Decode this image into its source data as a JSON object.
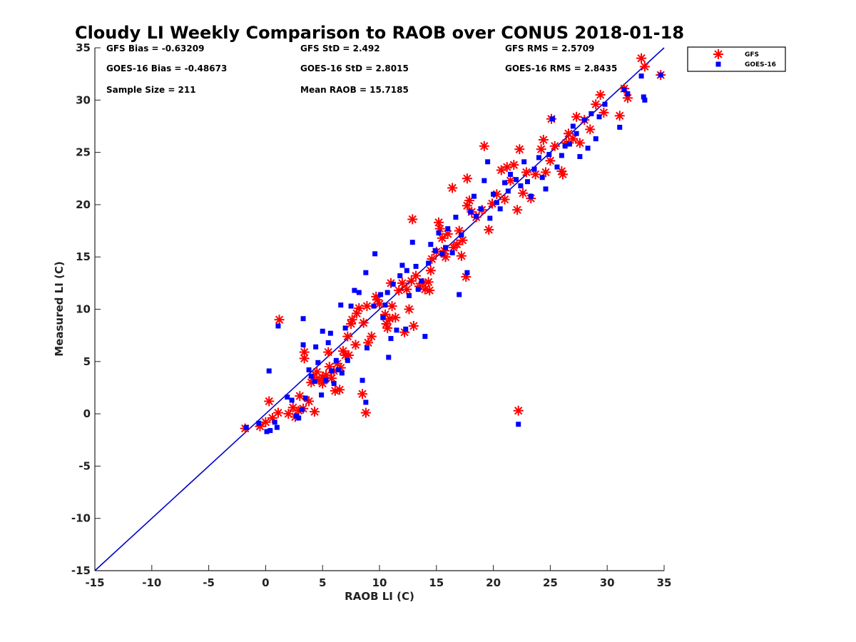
{
  "chart_data": {
    "type": "scatter",
    "title": "Cloudy LI Weekly Comparison to RAOB over CONUS 2018-01-18",
    "xlabel": "RAOB LI (C)",
    "ylabel": "Measured LI (C)",
    "xlim": [
      -15,
      35
    ],
    "ylim": [
      -15,
      35
    ],
    "xticks": [
      "-15",
      "-10",
      "-5",
      "0",
      "5",
      "10",
      "15",
      "20",
      "25",
      "30",
      "35"
    ],
    "yticks": [
      "-15",
      "-10",
      "-5",
      "0",
      "5",
      "10",
      "15",
      "20",
      "25",
      "30",
      "35"
    ],
    "grid": false,
    "legend_position": "outside-top-right",
    "reference_line": {
      "x": [
        -15,
        35
      ],
      "y": [
        -15,
        35
      ],
      "color": "#0000cc"
    },
    "stats": [
      [
        "GFS Bias = -0.63209",
        "GFS StD = 2.492",
        "GFS RMS = 2.5709"
      ],
      [
        "GOES-16 Bias = -0.48673",
        "GOES-16 StD = 2.8015",
        "GOES-16 RMS = 2.8435"
      ],
      [
        "Sample Size = 211",
        "Mean RAOB = 15.7185",
        ""
      ]
    ],
    "series": [
      {
        "name": "GFS",
        "marker": "asterisk",
        "color": "#ff0000",
        "points": [
          [
            -1.8,
            -1.4
          ],
          [
            -0.5,
            -1.2
          ],
          [
            0,
            -0.8
          ],
          [
            0.3,
            1.2
          ],
          [
            0.6,
            -0.4
          ],
          [
            1.1,
            0.1
          ],
          [
            1.2,
            9
          ],
          [
            2,
            0
          ],
          [
            2.4,
            0.6
          ],
          [
            2.6,
            -0.3
          ],
          [
            2.9,
            0.3
          ],
          [
            3,
            1.7
          ],
          [
            3.3,
            0.5
          ],
          [
            3.4,
            5.9
          ],
          [
            3.4,
            5.3
          ],
          [
            3.8,
            1.2
          ],
          [
            4,
            3
          ],
          [
            4.2,
            3.5
          ],
          [
            4.3,
            0.2
          ],
          [
            4.5,
            4
          ],
          [
            4.7,
            3.2
          ],
          [
            5,
            3.5
          ],
          [
            5,
            2.9
          ],
          [
            5.3,
            3.7
          ],
          [
            5.5,
            5.9
          ],
          [
            5.6,
            4.5
          ],
          [
            5.8,
            3.4
          ],
          [
            6,
            4.1
          ],
          [
            6.1,
            2.2
          ],
          [
            6.3,
            4.8
          ],
          [
            6.5,
            2.3
          ],
          [
            6.6,
            4.4
          ],
          [
            6.8,
            6
          ],
          [
            7,
            5.6
          ],
          [
            7.2,
            7.4
          ],
          [
            7.3,
            5.6
          ],
          [
            7.5,
            8.6
          ],
          [
            7.6,
            9
          ],
          [
            7.9,
            6.6
          ],
          [
            8,
            9.6
          ],
          [
            8.2,
            10.1
          ],
          [
            8.5,
            1.9
          ],
          [
            8.6,
            8.7
          ],
          [
            8.8,
            0.1
          ],
          [
            8.9,
            10.3
          ],
          [
            9,
            6.8
          ],
          [
            9.3,
            7.4
          ],
          [
            9.7,
            11.2
          ],
          [
            9.8,
            10.9
          ],
          [
            10,
            10.5
          ],
          [
            10.5,
            9.5
          ],
          [
            10.6,
            8.6
          ],
          [
            10.7,
            8.2
          ],
          [
            10.9,
            9.1
          ],
          [
            11,
            12.5
          ],
          [
            11.1,
            10.3
          ],
          [
            11.4,
            9.2
          ],
          [
            11.7,
            11.8
          ],
          [
            12,
            12.5
          ],
          [
            12.2,
            7.8
          ],
          [
            12.4,
            11.9
          ],
          [
            12.6,
            10
          ],
          [
            12.8,
            12.7
          ],
          [
            12.9,
            18.6
          ],
          [
            13,
            8.4
          ],
          [
            13.2,
            13.2
          ],
          [
            13.5,
            12.2
          ],
          [
            13.8,
            12.5
          ],
          [
            14,
            11.9
          ],
          [
            14.3,
            12.6
          ],
          [
            14.4,
            11.8
          ],
          [
            14.5,
            13.7
          ],
          [
            14.6,
            14.8
          ],
          [
            15,
            15.5
          ],
          [
            15.2,
            18.3
          ],
          [
            15.3,
            17.7
          ],
          [
            15.5,
            16.8
          ],
          [
            15.7,
            15.6
          ],
          [
            15.8,
            15
          ],
          [
            16,
            17.2
          ],
          [
            16.4,
            21.6
          ],
          [
            16.5,
            15.9
          ],
          [
            16.8,
            16.2
          ],
          [
            17,
            17.5
          ],
          [
            17.2,
            15.1
          ],
          [
            17.3,
            16.6
          ],
          [
            17.6,
            13.1
          ],
          [
            17.7,
            19.9
          ],
          [
            17.7,
            22.5
          ],
          [
            17.9,
            20.4
          ],
          [
            18.1,
            19.3
          ],
          [
            18.5,
            18.8
          ],
          [
            19,
            19.5
          ],
          [
            19.2,
            25.6
          ],
          [
            19.6,
            17.6
          ],
          [
            19.9,
            20.1
          ],
          [
            20.3,
            21
          ],
          [
            20.7,
            23.3
          ],
          [
            21,
            20.5
          ],
          [
            21.2,
            23.6
          ],
          [
            21.5,
            22.3
          ],
          [
            21.8,
            23.8
          ],
          [
            22.1,
            19.5
          ],
          [
            22.3,
            25.3
          ],
          [
            22.2,
            0.3
          ],
          [
            22.6,
            21.1
          ],
          [
            22.9,
            23.1
          ],
          [
            23.3,
            20.6
          ],
          [
            23.7,
            22.9
          ],
          [
            24.2,
            25.3
          ],
          [
            24.4,
            26.2
          ],
          [
            24.6,
            23.1
          ],
          [
            25,
            24.2
          ],
          [
            25.1,
            28.2
          ],
          [
            25.4,
            25.6
          ],
          [
            26,
            23.2
          ],
          [
            26.1,
            22.9
          ],
          [
            26.4,
            25.9
          ],
          [
            26.6,
            26.8
          ],
          [
            27,
            26.3
          ],
          [
            27.3,
            28.4
          ],
          [
            27.6,
            25.9
          ],
          [
            28,
            28.1
          ],
          [
            28.5,
            27.2
          ],
          [
            29,
            29.6
          ],
          [
            29.4,
            30.5
          ],
          [
            29.7,
            28.8
          ],
          [
            31.1,
            28.5
          ],
          [
            31.5,
            31.1
          ],
          [
            31.8,
            30.2
          ],
          [
            33,
            34
          ],
          [
            33.3,
            33.2
          ],
          [
            34.7,
            32.4
          ]
        ]
      },
      {
        "name": "GOES-16",
        "marker": "square",
        "color": "#0000ff",
        "points": [
          [
            -1.7,
            -1.3
          ],
          [
            -0.6,
            -0.9
          ],
          [
            0.1,
            -1.7
          ],
          [
            0.3,
            4.1
          ],
          [
            0.4,
            -1.6
          ],
          [
            0.8,
            -0.8
          ],
          [
            1,
            -1.3
          ],
          [
            1.1,
            8.4
          ],
          [
            1.9,
            1.6
          ],
          [
            2.3,
            1.3
          ],
          [
            2.7,
            -0.2
          ],
          [
            2.9,
            -0.4
          ],
          [
            3.2,
            0.4
          ],
          [
            3.3,
            9.1
          ],
          [
            3.3,
            6.6
          ],
          [
            3.5,
            1.5
          ],
          [
            3.8,
            4.2
          ],
          [
            4,
            3.6
          ],
          [
            4.3,
            3.1
          ],
          [
            4.4,
            6.4
          ],
          [
            4.6,
            4.9
          ],
          [
            4.9,
            1.8
          ],
          [
            5,
            7.9
          ],
          [
            5.3,
            3.2
          ],
          [
            5.5,
            6.8
          ],
          [
            5.7,
            7.7
          ],
          [
            5.8,
            4.1
          ],
          [
            6,
            2.9
          ],
          [
            6.2,
            5.1
          ],
          [
            6.4,
            4.2
          ],
          [
            6.6,
            10.4
          ],
          [
            6.7,
            3.9
          ],
          [
            7,
            8.2
          ],
          [
            7.2,
            5.1
          ],
          [
            7.5,
            10.3
          ],
          [
            7.8,
            11.8
          ],
          [
            8.2,
            11.6
          ],
          [
            8.5,
            3.2
          ],
          [
            8.8,
            13.5
          ],
          [
            8.8,
            1.1
          ],
          [
            8.9,
            6.3
          ],
          [
            9.5,
            10.3
          ],
          [
            9.6,
            15.3
          ],
          [
            10.1,
            11.4
          ],
          [
            10.3,
            9.2
          ],
          [
            10.5,
            10.4
          ],
          [
            10.7,
            11.6
          ],
          [
            10.8,
            5.4
          ],
          [
            11,
            7.2
          ],
          [
            11.2,
            12.4
          ],
          [
            11.5,
            8
          ],
          [
            11.8,
            13.2
          ],
          [
            12,
            14.2
          ],
          [
            12.3,
            8.1
          ],
          [
            12.4,
            13.7
          ],
          [
            12.6,
            11.3
          ],
          [
            12.9,
            16.4
          ],
          [
            13.2,
            14.1
          ],
          [
            13.4,
            11.9
          ],
          [
            13.7,
            12.7
          ],
          [
            14,
            7.4
          ],
          [
            14.3,
            14.4
          ],
          [
            14.5,
            16.2
          ],
          [
            14.9,
            15.6
          ],
          [
            15.2,
            17.3
          ],
          [
            15.5,
            15.3
          ],
          [
            15.8,
            15.9
          ],
          [
            16,
            17.7
          ],
          [
            16.4,
            15.4
          ],
          [
            16.7,
            18.8
          ],
          [
            17,
            11.4
          ],
          [
            17.2,
            17.1
          ],
          [
            17.7,
            13.5
          ],
          [
            18,
            19.3
          ],
          [
            18.3,
            20.8
          ],
          [
            18.5,
            18.9
          ],
          [
            18.9,
            19.6
          ],
          [
            19.2,
            22.3
          ],
          [
            19.5,
            24.1
          ],
          [
            19.7,
            18.7
          ],
          [
            20,
            21
          ],
          [
            20.3,
            20.2
          ],
          [
            20.6,
            19.6
          ],
          [
            21,
            22.1
          ],
          [
            21.3,
            21.3
          ],
          [
            21.5,
            22.9
          ],
          [
            22,
            22.4
          ],
          [
            22.2,
            -1
          ],
          [
            22.4,
            21.8
          ],
          [
            22.7,
            24.1
          ],
          [
            23,
            22.2
          ],
          [
            23.3,
            20.8
          ],
          [
            23.6,
            23.4
          ],
          [
            24,
            24.5
          ],
          [
            24.3,
            22.6
          ],
          [
            24.6,
            21.5
          ],
          [
            24.9,
            24.8
          ],
          [
            25.2,
            28.2
          ],
          [
            25.6,
            23.6
          ],
          [
            26,
            24.7
          ],
          [
            26.3,
            25.6
          ],
          [
            26.7,
            25.8
          ],
          [
            27,
            27.5
          ],
          [
            27.3,
            26.8
          ],
          [
            27.6,
            24.6
          ],
          [
            28,
            28.1
          ],
          [
            28.3,
            25.4
          ],
          [
            28.6,
            28.7
          ],
          [
            29,
            26.3
          ],
          [
            29.3,
            28.4
          ],
          [
            29.8,
            29.6
          ],
          [
            31.1,
            27.4
          ],
          [
            31.5,
            31
          ],
          [
            31.8,
            30.6
          ],
          [
            33,
            32.3
          ],
          [
            33.2,
            30.3
          ],
          [
            33.3,
            30
          ],
          [
            34.7,
            32.4
          ]
        ]
      }
    ]
  }
}
